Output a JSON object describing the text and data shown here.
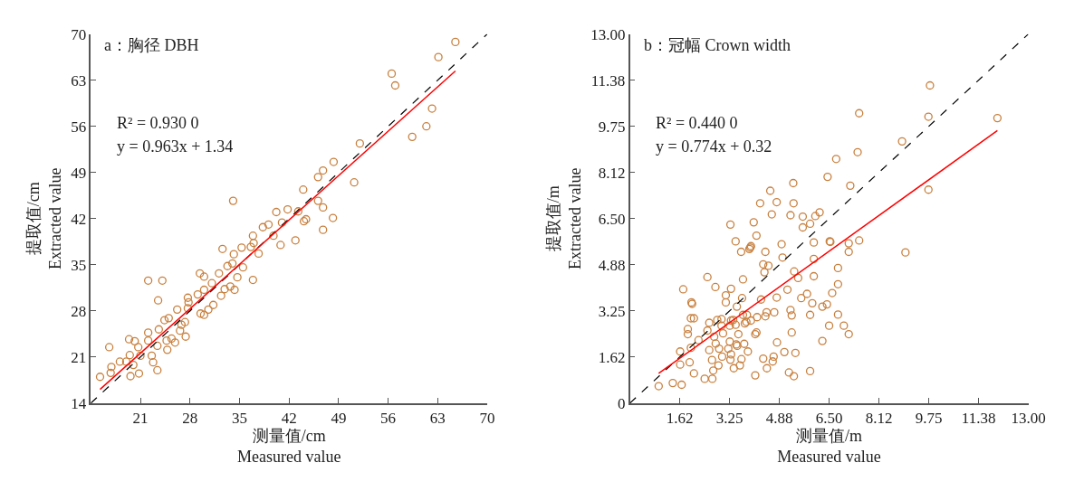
{
  "chart_data": [
    {
      "type": "scatter",
      "title": "a：胸径 DBH",
      "xlabel": "测量值/cm\nMeasured value",
      "ylabel": "提取值/cm\nExtracted value",
      "annotations": [
        "R² = 0.930 0",
        "y = 0.963x + 1.34"
      ],
      "xlim": [
        14,
        70
      ],
      "ylim": [
        14,
        70
      ],
      "xticks": [
        21,
        28,
        35,
        42,
        49,
        56,
        63,
        70
      ],
      "yticks": [
        14,
        21,
        28,
        35,
        42,
        49,
        56,
        63,
        70
      ],
      "series": [
        {
          "marker": "circle",
          "color": "#c8803f",
          "x": [
            15.3,
            16.6,
            16.9,
            16.8,
            18.1,
            19.0,
            19.4,
            19.6,
            20.0,
            20.2,
            19.5,
            20.8,
            20.7,
            21.0,
            22.1,
            22.1,
            22.1,
            22.6,
            22.8,
            23.4,
            23.5,
            23.4,
            23.6,
            24.1,
            24.4,
            24.8,
            24.7,
            25.0,
            25.4,
            25.9,
            26.2,
            26.6,
            26.8,
            27.4,
            27.7,
            27.8,
            27.3,
            27.7,
            29.1,
            29.4,
            30.0,
            29.5,
            30.0,
            30.0,
            30.6,
            31.1,
            31.3,
            32.1,
            32.4,
            32.6,
            32.9,
            33.3,
            33.7,
            34.0,
            34.2,
            34.3,
            34.7,
            35.3,
            35.5,
            36.6,
            36.9,
            36.9,
            37.0,
            37.7,
            38.3,
            39.1,
            39.8,
            40.8,
            41.0,
            42.9,
            43.3,
            44.1,
            44.4,
            46.8,
            34.1,
            41.8,
            40.2,
            44.0,
            46.1,
            46.8,
            48.2,
            46.1,
            46.8,
            48.3,
            51.2,
            52.0,
            59.4,
            61.4,
            62.2,
            56.5,
            57.0,
            63.1,
            65.5
          ],
          "values": [
            18.0,
            22.5,
            19.5,
            18.6,
            20.3,
            20.3,
            23.7,
            18.1,
            19.8,
            23.4,
            21.3,
            18.5,
            22.5,
            21.2,
            24.7,
            23.5,
            32.6,
            21.2,
            20.2,
            19.0,
            29.6,
            22.7,
            25.2,
            32.6,
            26.6,
            22.1,
            23.5,
            26.9,
            23.8,
            23.2,
            28.2,
            25.0,
            25.9,
            24.1,
            30.0,
            29.3,
            26.3,
            28.4,
            30.5,
            33.7,
            33.2,
            27.6,
            27.4,
            31.2,
            28.2,
            32.2,
            28.9,
            33.7,
            30.3,
            37.4,
            31.3,
            34.8,
            31.7,
            35.2,
            36.6,
            31.2,
            33.1,
            37.6,
            34.6,
            37.7,
            32.7,
            39.4,
            38.3,
            36.7,
            40.7,
            41.1,
            39.4,
            38.0,
            41.4,
            38.7,
            43.1,
            41.6,
            41.9,
            40.3,
            44.7,
            43.4,
            43.0,
            46.4,
            44.7,
            43.7,
            42.1,
            48.3,
            49.3,
            50.6,
            47.5,
            53.4,
            54.4,
            56.0,
            58.7,
            64.0,
            62.2,
            66.5,
            68.8
          ]
        },
        {
          "type": "line",
          "color": "#000000",
          "line_style": "dashed",
          "x": [
            14,
            70
          ],
          "values": [
            14,
            70
          ]
        },
        {
          "type": "line",
          "color": "#ff0000",
          "line_style": "solid",
          "x": [
            15.3,
            65.5
          ],
          "values": [
            16.1,
            64.4
          ]
        }
      ]
    },
    {
      "type": "scatter",
      "title": "b：冠幅 Crown width",
      "xlabel": "测量值/m\nMeasured value",
      "ylabel": "提取值/m\nExtracted value",
      "annotations": [
        "R² = 0.440 0",
        "y = 0.774x + 0.32"
      ],
      "xlim": [
        0,
        13
      ],
      "ylim": [
        0,
        13
      ],
      "xticks": [
        {
          "value": 1.625,
          "label": "1.62"
        },
        {
          "value": 3.25,
          "label": "3.25"
        },
        {
          "value": 4.875,
          "label": "4.88"
        },
        {
          "value": 6.5,
          "label": "6.50"
        },
        {
          "value": 8.125,
          "label": "8.12"
        },
        {
          "value": 9.75,
          "label": "9.75"
        },
        {
          "value": 11.375,
          "label": "11.38"
        },
        {
          "value": 13,
          "label": "13.00"
        }
      ],
      "yticks": [
        0,
        {
          "value": 1.625,
          "label": "1.62"
        },
        {
          "value": 3.25,
          "label": "3.25"
        },
        {
          "value": 4.875,
          "label": "4.88"
        },
        {
          "value": 6.5,
          "label": "6.50"
        },
        {
          "value": 8.125,
          "label": "8.12"
        },
        {
          "value": 9.75,
          "label": "9.75"
        },
        {
          "value": 11.375,
          "label": "11.38"
        },
        {
          "value": 13,
          "label": "13.00"
        }
      ],
      "series": [
        {
          "marker": "circle",
          "color": "#c8803f",
          "x": [
            0.94,
            1.4,
            1.69,
            1.64,
            1.64,
            1.95,
            1.99,
            2.09,
            1.89,
            1.89,
            1.99,
            2.09,
            2.01,
            2.03,
            1.74,
            2.24,
            2.44,
            2.69,
            2.53,
            2.59,
            2.53,
            2.59,
            2.68,
            2.72,
            2.75,
            2.8,
            2.79,
            2.85,
            2.89,
            2.91,
            2.99,
            2.99,
            3.04,
            3.01,
            3.13,
            3.13,
            3.21,
            3.26,
            3.28,
            3.3,
            3.26,
            3.3,
            3.28,
            3.3,
            3.37,
            3.39,
            3.45,
            3.45,
            3.47,
            3.49,
            3.5,
            3.54,
            3.59,
            3.63,
            3.66,
            3.64,
            3.69,
            3.69,
            3.73,
            3.75,
            3.8,
            3.82,
            3.85,
            3.9,
            3.93,
            3.95,
            3.95,
            4.04,
            4.13,
            4.09,
            4.13,
            4.09,
            4.15,
            4.25,
            4.28,
            4.35,
            4.35,
            4.39,
            4.42,
            4.42,
            4.46,
            4.47,
            4.52,
            4.58,
            4.63,
            4.66,
            4.69,
            4.71,
            4.79,
            4.79,
            4.8,
            4.95,
            4.98,
            5.04,
            5.14,
            5.19,
            5.24,
            5.24,
            5.28,
            5.28,
            5.33,
            5.34,
            5.35,
            5.36,
            5.4,
            5.49,
            5.59,
            5.64,
            5.64,
            5.78,
            5.88,
            5.88,
            5.88,
            5.95,
            6.0,
            6.0,
            6.0,
            6.05,
            6.19,
            6.28,
            6.45,
            6.5,
            6.52,
            6.73,
            7.19,
            7.48,
            7.43,
            6.54,
            7.14,
            7.48,
            7.14,
            6.79,
            6.79,
            6.6,
            6.43,
            6.79,
            6.98,
            7.14,
            6.28,
            8.99,
            8.88,
            9.74,
            9.79,
            9.74,
            11.99
          ],
          "values": [
            0.6,
            0.71,
            0.65,
            1.36,
            1.82,
            1.44,
            1.95,
            1.05,
            2.43,
            2.61,
            2.99,
            2.99,
            3.55,
            3.5,
            4.01,
            2.22,
            0.86,
            0.86,
            4.44,
            2.83,
            2.56,
            1.87,
            1.52,
            1.15,
            2.34,
            2.1,
            4.09,
            2.93,
            1.33,
            1.92,
            2.73,
            2.96,
            2.46,
            1.64,
            3.55,
            3.8,
            1.92,
            2.17,
            1.53,
            1.72,
            2.73,
            2.91,
            6.29,
            4.03,
            2.93,
            1.23,
            5.7,
            2.76,
            2.07,
            3.4,
            2.02,
            2.43,
            1.33,
            5.33,
            3.7,
            1.55,
            3.11,
            4.36,
            2.09,
            2.81,
            2.86,
            3.11,
            1.82,
            5.43,
            5.48,
            5.53,
            2.91,
            6.37,
            5.9,
            2.43,
            2.49,
            0.98,
            3.03,
            7.04,
            3.65,
            1.57,
            4.89,
            4.61,
            5.33,
            3.06,
            3.2,
            1.23,
            4.84,
            7.48,
            6.65,
            1.47,
            1.64,
            3.2,
            7.08,
            3.72,
            2.14,
            5.6,
            5.13,
            1.8,
            4.0,
            1.08,
            6.62,
            3.28,
            3.09,
            2.49,
            7.75,
            7.04,
            0.95,
            4.64,
            1.77,
            4.41,
            3.7,
            6.57,
            6.19,
            3.85,
            1.13,
            3.11,
            6.32,
            3.52,
            5.08,
            5.66,
            4.47,
            6.59,
            6.72,
            3.4,
            7.97,
            2.73,
            5.7,
            8.6,
            7.66,
            10.21,
            8.84,
            5.68,
            5.63,
            5.73,
            5.33,
            4.76,
            4.19,
            3.88,
            3.48,
            3.12,
            2.73,
            2.43,
            2.19,
            5.31,
            9.22,
            10.09,
            11.19,
            7.52,
            10.04
          ]
        },
        {
          "type": "line",
          "color": "#000000",
          "line_style": "dashed",
          "x": [
            0,
            13
          ],
          "values": [
            0,
            13
          ]
        },
        {
          "type": "line",
          "color": "#ff0000",
          "line_style": "solid",
          "x": [
            0.94,
            11.99
          ],
          "values": [
            1.05,
            9.6
          ]
        }
      ]
    }
  ]
}
